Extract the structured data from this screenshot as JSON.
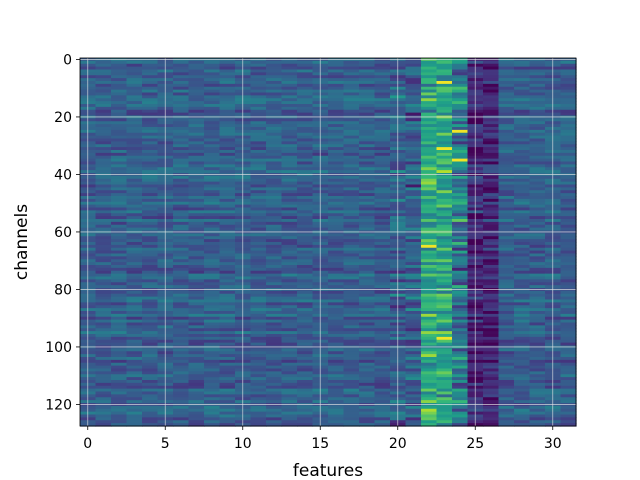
{
  "chart_data": {
    "type": "heatmap",
    "title": "",
    "xlabel": "features",
    "ylabel": "channels",
    "n_cols": 32,
    "n_rows": 128,
    "xlim": [
      -0.5,
      31.5
    ],
    "ylim": [
      127.5,
      -0.5
    ],
    "x_ticks": [
      0,
      5,
      10,
      15,
      20,
      25,
      30
    ],
    "y_ticks": [
      0,
      20,
      40,
      60,
      80,
      100,
      120
    ],
    "grid": true,
    "colormap": "viridis",
    "colors": {
      "background": "#3b528b",
      "grid": "#e6e6e6",
      "hot": "#fde725",
      "cold": "#440154"
    },
    "description_values": {
      "background_level": 0.3,
      "bright_feature_range": [
        22,
        24
      ],
      "dark_feature_range": [
        24,
        26
      ],
      "brightest_cells": [
        [
          23,
          8
        ],
        [
          23,
          31
        ],
        [
          24,
          35
        ],
        [
          23,
          97
        ],
        [
          22,
          65
        ],
        [
          24,
          25
        ]
      ]
    }
  }
}
